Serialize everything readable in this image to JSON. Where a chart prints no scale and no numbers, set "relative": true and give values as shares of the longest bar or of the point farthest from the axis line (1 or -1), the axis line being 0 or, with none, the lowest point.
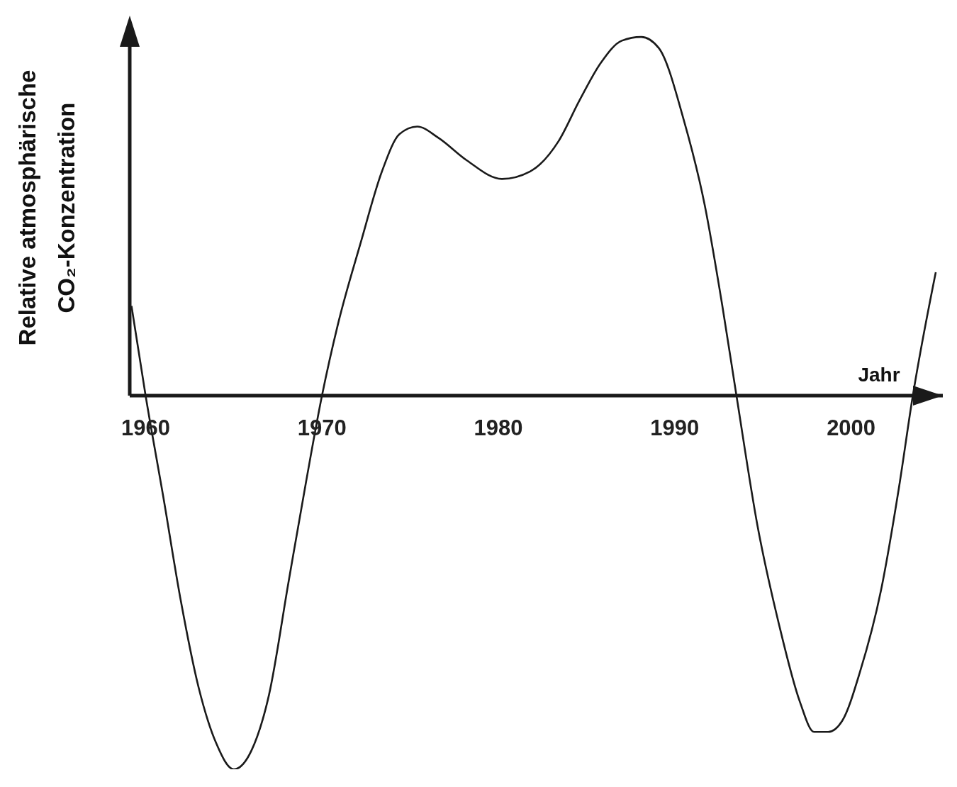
{
  "chart_data": {
    "type": "line",
    "relative": true,
    "xlabel": "Jahr",
    "ylabel": "Relative atmosphärische CO₂-Konzentration",
    "xlim": [
      1959.1,
      2005.2
    ],
    "xticks": [
      1960,
      1970,
      1980,
      1990,
      2000
    ],
    "grid": false,
    "legend": false,
    "marker": "none",
    "line_style": "solid",
    "x": [
      1959.2,
      1960,
      1961.0,
      1962.0,
      1963.0,
      1964.0,
      1965.0,
      1966.0,
      1967.0,
      1968.1,
      1969.1,
      1970,
      1970.9,
      1972.2,
      1973.4,
      1974.4,
      1975.4,
      1976.6,
      1978.2,
      1980.2,
      1981.8,
      1983.4,
      1984.6,
      1985.8,
      1987.0,
      1988.1,
      1989.1,
      1990.5,
      1991.7,
      1992.7,
      1993.5,
      1994.7,
      1995.9,
      1997.1,
      1997.9,
      1998.7,
      1999.5,
      2000.5,
      2001.7,
      2002.7,
      2003.5,
      2004.8
    ],
    "series": [
      {
        "color": "#1a1a1a",
        "values": [
          0.24,
          0.0,
          -0.27,
          -0.55,
          -0.78,
          -0.93,
          -1.0,
          -0.95,
          -0.8,
          -0.5,
          -0.23,
          0.0,
          0.19,
          0.41,
          0.6,
          0.7,
          0.72,
          0.69,
          0.63,
          0.58,
          0.6,
          0.68,
          0.79,
          0.89,
          0.95,
          0.96,
          0.93,
          0.74,
          0.51,
          0.24,
          0.0,
          -0.35,
          -0.61,
          -0.82,
          -0.9,
          -0.9,
          -0.87,
          -0.74,
          -0.52,
          -0.25,
          0.0,
          0.33
        ]
      }
    ]
  }
}
